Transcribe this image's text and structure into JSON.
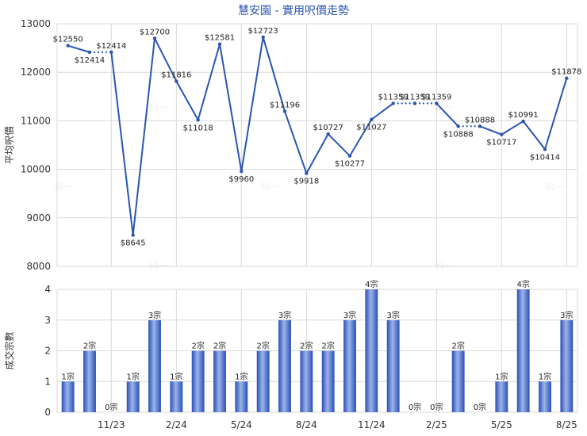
{
  "colors": {
    "line": "#2a55b0",
    "bar_light": "#9bb4ea",
    "bar_dark": "#2b4fb5",
    "grid": "#d9d9d9",
    "title": "#2a55b0"
  },
  "chart_data": [
    {
      "type": "line",
      "title": "慧安園 - 實用呎價走勢",
      "ylabel": "平均呎價",
      "ylim": [
        8000,
        13000
      ],
      "yticks": [
        8000,
        9000,
        10000,
        11000,
        12000,
        13000
      ],
      "grid": true,
      "values": [
        12550,
        12414,
        12414,
        8645,
        12700,
        11816,
        11018,
        12581,
        9960,
        12723,
        11196,
        9918,
        10727,
        10277,
        11027,
        11359,
        11359,
        11359,
        10888,
        10888,
        10717,
        10991,
        10414,
        11878
      ],
      "point_labels": [
        "$12550",
        "$12414",
        "$12414",
        "$8645",
        "$12700",
        "$11816",
        "$11018",
        "$12581",
        "$9960",
        "$12723",
        "$11196",
        "$9918",
        "$10727",
        "$10277",
        "$11027",
        "$11359",
        "$11359",
        "$11359",
        "$10888",
        "$10888",
        "$10717",
        "$10991",
        "$10414",
        "$11878"
      ]
    },
    {
      "type": "bar",
      "ylabel": "成交宗數",
      "ylim": [
        0,
        4
      ],
      "yticks": [
        0,
        1,
        2,
        3,
        4
      ],
      "grid": true,
      "values": [
        1,
        2,
        0,
        1,
        3,
        1,
        2,
        2,
        1,
        2,
        3,
        2,
        2,
        3,
        4,
        3,
        0,
        0,
        2,
        0,
        1,
        4,
        1,
        3
      ],
      "bar_labels": [
        "1宗",
        "2宗",
        "0宗",
        "1宗",
        "3宗",
        "1宗",
        "2宗",
        "2宗",
        "1宗",
        "2宗",
        "3宗",
        "2宗",
        "2宗",
        "3宗",
        "4宗",
        "3宗",
        "0宗",
        "0宗",
        "2宗",
        "0宗",
        "1宗",
        "4宗",
        "1宗",
        "3宗"
      ],
      "x_tick_labels": [
        "11/23",
        "2/24",
        "5/24",
        "8/24",
        "11/24",
        "2/25",
        "5/25",
        "8/25"
      ],
      "x_tick_positions": [
        2,
        5,
        8,
        11,
        14,
        17,
        20,
        23
      ]
    }
  ],
  "watermark": "科一"
}
